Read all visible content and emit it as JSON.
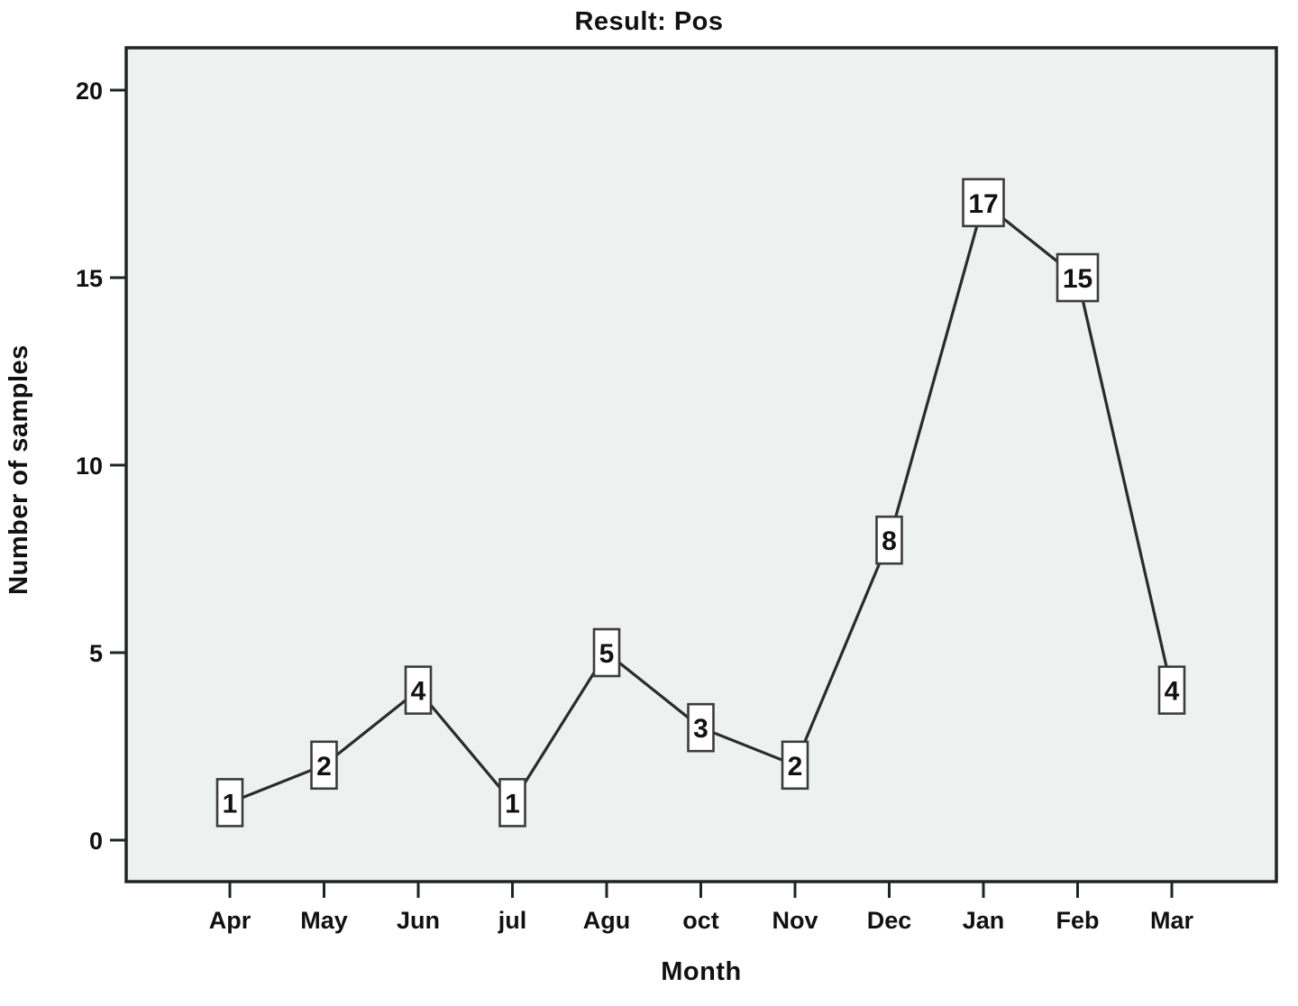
{
  "chart_data": {
    "type": "line",
    "title": "Result: Pos",
    "xlabel": "Month",
    "ylabel": "Number of samples",
    "categories": [
      "Apr",
      "May",
      "Jun",
      "jul",
      "Agu",
      "oct",
      "Nov",
      "Dec",
      "Jan",
      "Feb",
      "Mar"
    ],
    "values": [
      1,
      2,
      4,
      1,
      5,
      3,
      2,
      8,
      17,
      15,
      4
    ],
    "point_labels": [
      "1",
      "2",
      "4",
      "1",
      "5",
      "3",
      "2",
      "8",
      "17",
      "15",
      "4"
    ],
    "yticks": [
      0,
      5,
      10,
      15,
      20
    ],
    "ylim": [
      -1.1,
      21.2
    ],
    "grid": false,
    "legend_position": "none",
    "marker_style": "labeled-box",
    "colors": {
      "plot_bg": "#edf1f0",
      "frame": "#1f2425",
      "line": "#2b2b2b",
      "marker_fill": "#ffffff",
      "marker_border": "#3c3c3c",
      "text": "#111111"
    }
  }
}
